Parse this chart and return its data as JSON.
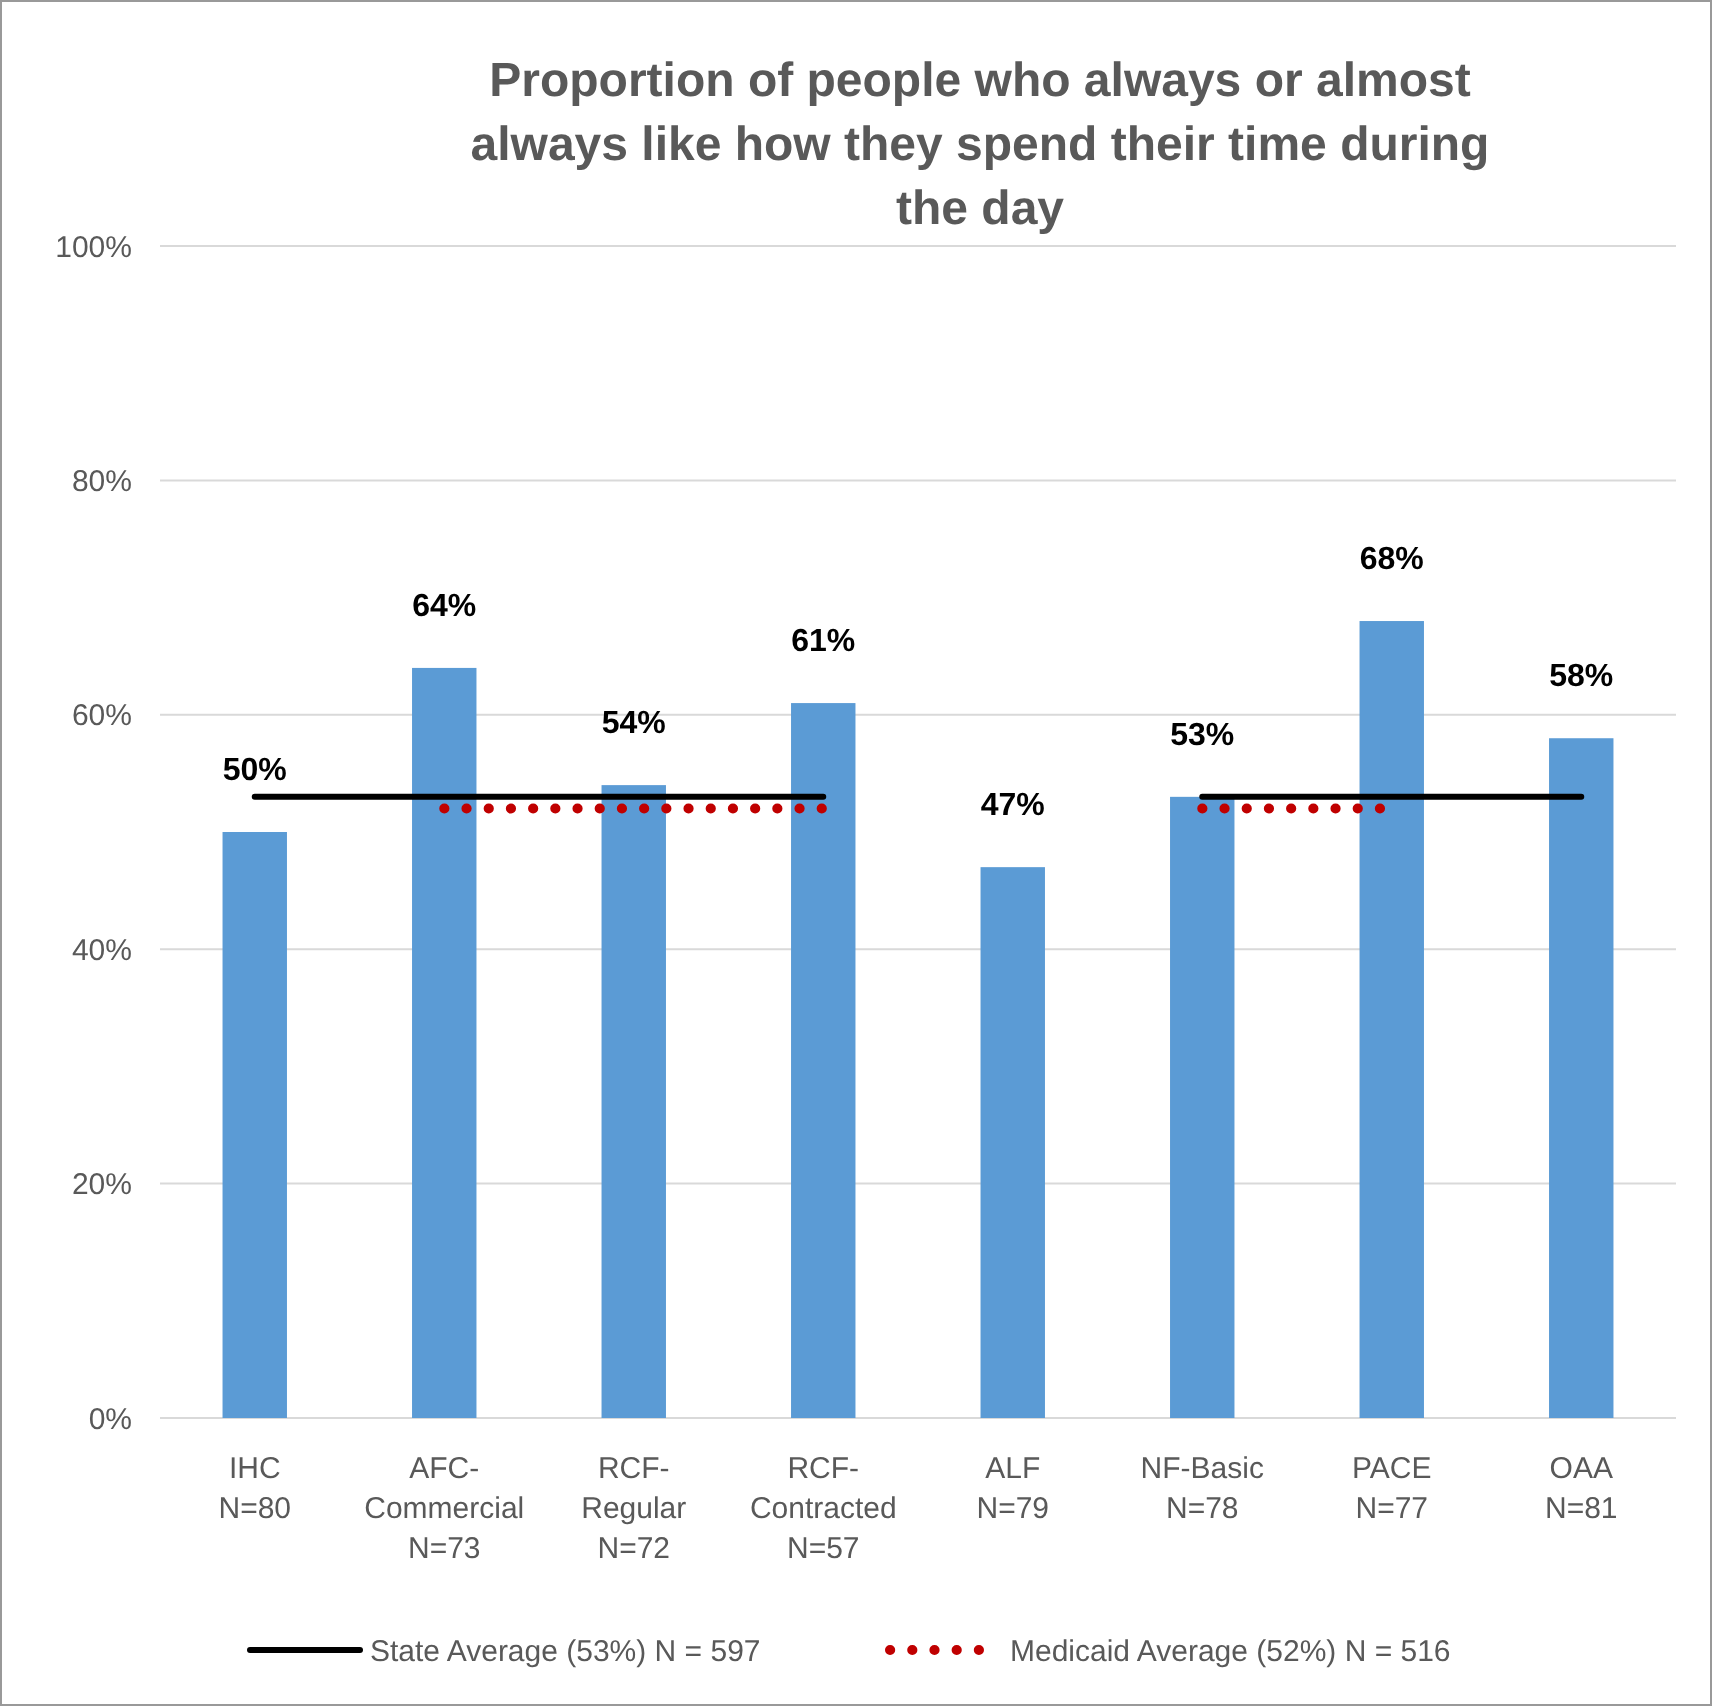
{
  "chart_data": {
    "type": "bar",
    "title": "Proportion of people who always or almost always like how they spend their time during the day",
    "categories": [
      "IHC\nN=80",
      "AFC-\nCommercial\nN=73",
      "RCF-\nRegular\nN=72",
      "RCF-\nContracted\nN=57",
      "ALF\nN=79",
      "NF-Basic\nN=78",
      "PACE\nN=77",
      "OAA\nN=81"
    ],
    "series": [
      {
        "color": "#5b9bd5",
        "values": [
          50,
          64,
          54,
          61,
          47,
          53,
          68,
          58
        ],
        "value_labels": [
          "50%",
          "64%",
          "54%",
          "61%",
          "47%",
          "53%",
          "68%",
          "58%"
        ]
      },
      {
        "type": "line",
        "name": "State Average (53%) N = 597",
        "color": "#000000",
        "line_style": "solid",
        "values": [
          53,
          53,
          53,
          53,
          null,
          53,
          53,
          53
        ]
      },
      {
        "type": "line",
        "name": "Medicaid Average (52%) N = 516",
        "color": "#c00000",
        "line_style": "dotted",
        "values": [
          null,
          52,
          52,
          52,
          null,
          52,
          52,
          null
        ]
      }
    ],
    "ylim": [
      0,
      100
    ],
    "yticks": [
      {
        "value": 0,
        "label": "0%"
      },
      {
        "value": 20,
        "label": "20%"
      },
      {
        "value": 40,
        "label": "40%"
      },
      {
        "value": 60,
        "label": "60%"
      },
      {
        "value": 80,
        "label": "80%"
      },
      {
        "value": 100,
        "label": "100%"
      }
    ],
    "grid": "y",
    "legend": "bottom",
    "marker": "none"
  }
}
